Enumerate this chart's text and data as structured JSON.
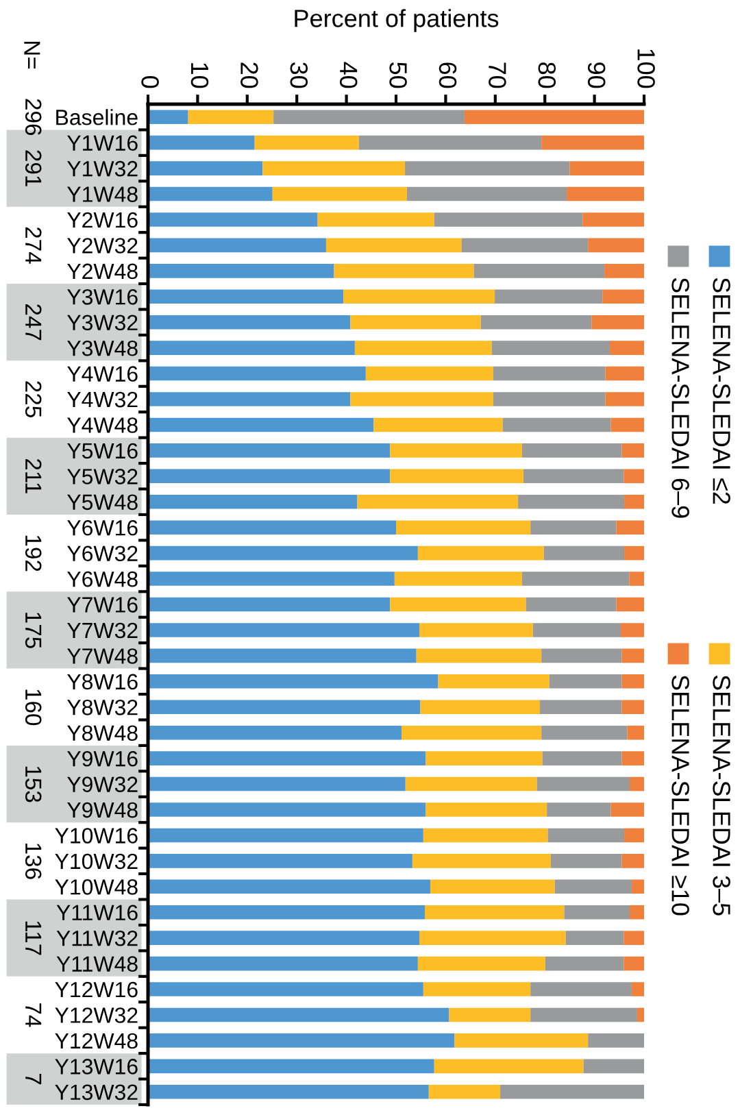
{
  "chart_data": {
    "type": "bar",
    "orientation": "horizontal",
    "stacked": true,
    "title": "Percent of patients",
    "categories": [
      "Baseline",
      "Y1W16",
      "Y1W32",
      "Y1W48",
      "Y2W16",
      "Y2W32",
      "Y2W48",
      "Y3W16",
      "Y3W32",
      "Y3W48",
      "Y4W16",
      "Y4W32",
      "Y4W48",
      "Y5W16",
      "Y5W32",
      "Y5W48",
      "Y6W16",
      "Y6W32",
      "Y6W48",
      "Y7W16",
      "Y7W32",
      "Y7W48",
      "Y8W16",
      "Y8W32",
      "Y8W48",
      "Y9W16",
      "Y9W32",
      "Y9W48",
      "Y10W16",
      "Y10W32",
      "Y10W48",
      "Y11W16",
      "Y11W32",
      "Y11W48",
      "Y12W16",
      "Y12W32",
      "Y12W48",
      "Y13W16",
      "Y13W32"
    ],
    "series": [
      {
        "name": "SELENA-SLEDAI ≤2",
        "color": "#4f97d1",
        "values": [
          8.1,
          21.5,
          23.1,
          25.1,
          34.2,
          35.9,
          37.5,
          39.4,
          40.8,
          41.7,
          43.9,
          40.8,
          45.5,
          48.8,
          48.8,
          42.2,
          50.0,
          54.4,
          49.7,
          48.8,
          54.7,
          54.1,
          58.5,
          54.9,
          51.1,
          56.0,
          51.9,
          56.0,
          55.5,
          53.3,
          56.9,
          55.8,
          54.7,
          54.4,
          55.5,
          60.7,
          61.8,
          57.7,
          56.6
        ]
      },
      {
        "name": "SELENA-SLEDAI 3–5",
        "color": "#fdbd26",
        "values": [
          17.2,
          21.0,
          28.7,
          27.1,
          23.5,
          27.3,
          28.2,
          30.5,
          26.3,
          27.6,
          25.7,
          28.8,
          26.0,
          26.6,
          26.9,
          32.4,
          27.1,
          25.4,
          25.7,
          27.4,
          22.9,
          25.2,
          22.4,
          24.1,
          28.2,
          23.5,
          26.5,
          24.4,
          25.1,
          27.9,
          25.1,
          28.1,
          29.5,
          25.7,
          21.6,
          16.4,
          26.9,
          30.1,
          14.4
        ]
      },
      {
        "name": "SELENA-SLEDAI 6–9",
        "color": "#989a9b",
        "values": [
          38.5,
          36.8,
          33.2,
          32.2,
          29.9,
          25.5,
          26.3,
          21.7,
          22.3,
          23.8,
          22.6,
          22.6,
          21.8,
          20.1,
          20.2,
          21.4,
          17.3,
          16.2,
          21.6,
          18.2,
          17.7,
          16.2,
          14.6,
          16.5,
          17.3,
          16.0,
          18.7,
          12.9,
          15.4,
          14.3,
          15.5,
          13.2,
          11.7,
          15.8,
          20.4,
          21.5,
          11.3,
          12.2,
          29.0
        ]
      },
      {
        "name": "SELENA-SLEDAI ≥10",
        "color": "#f0813c",
        "values": [
          36.2,
          20.7,
          15.0,
          15.6,
          12.4,
          11.3,
          8.0,
          8.4,
          10.6,
          6.9,
          7.8,
          7.8,
          6.7,
          4.5,
          4.1,
          4.0,
          5.6,
          4.0,
          3.0,
          5.6,
          4.7,
          4.5,
          4.5,
          4.5,
          3.4,
          4.5,
          2.9,
          6.7,
          4.0,
          4.5,
          2.5,
          2.9,
          4.1,
          4.1,
          2.5,
          1.4,
          0,
          0,
          0
        ]
      }
    ],
    "xlim": [
      0,
      100
    ],
    "xticks": [
      0,
      10,
      20,
      30,
      40,
      50,
      60,
      70,
      80,
      90,
      100
    ],
    "grid": false,
    "legend": "right",
    "annotations": [
      "N=",
      "296",
      "291",
      "274",
      "247",
      "225",
      "211",
      "192",
      "175",
      "160",
      "153",
      "136",
      "117",
      "74",
      "7"
    ]
  }
}
